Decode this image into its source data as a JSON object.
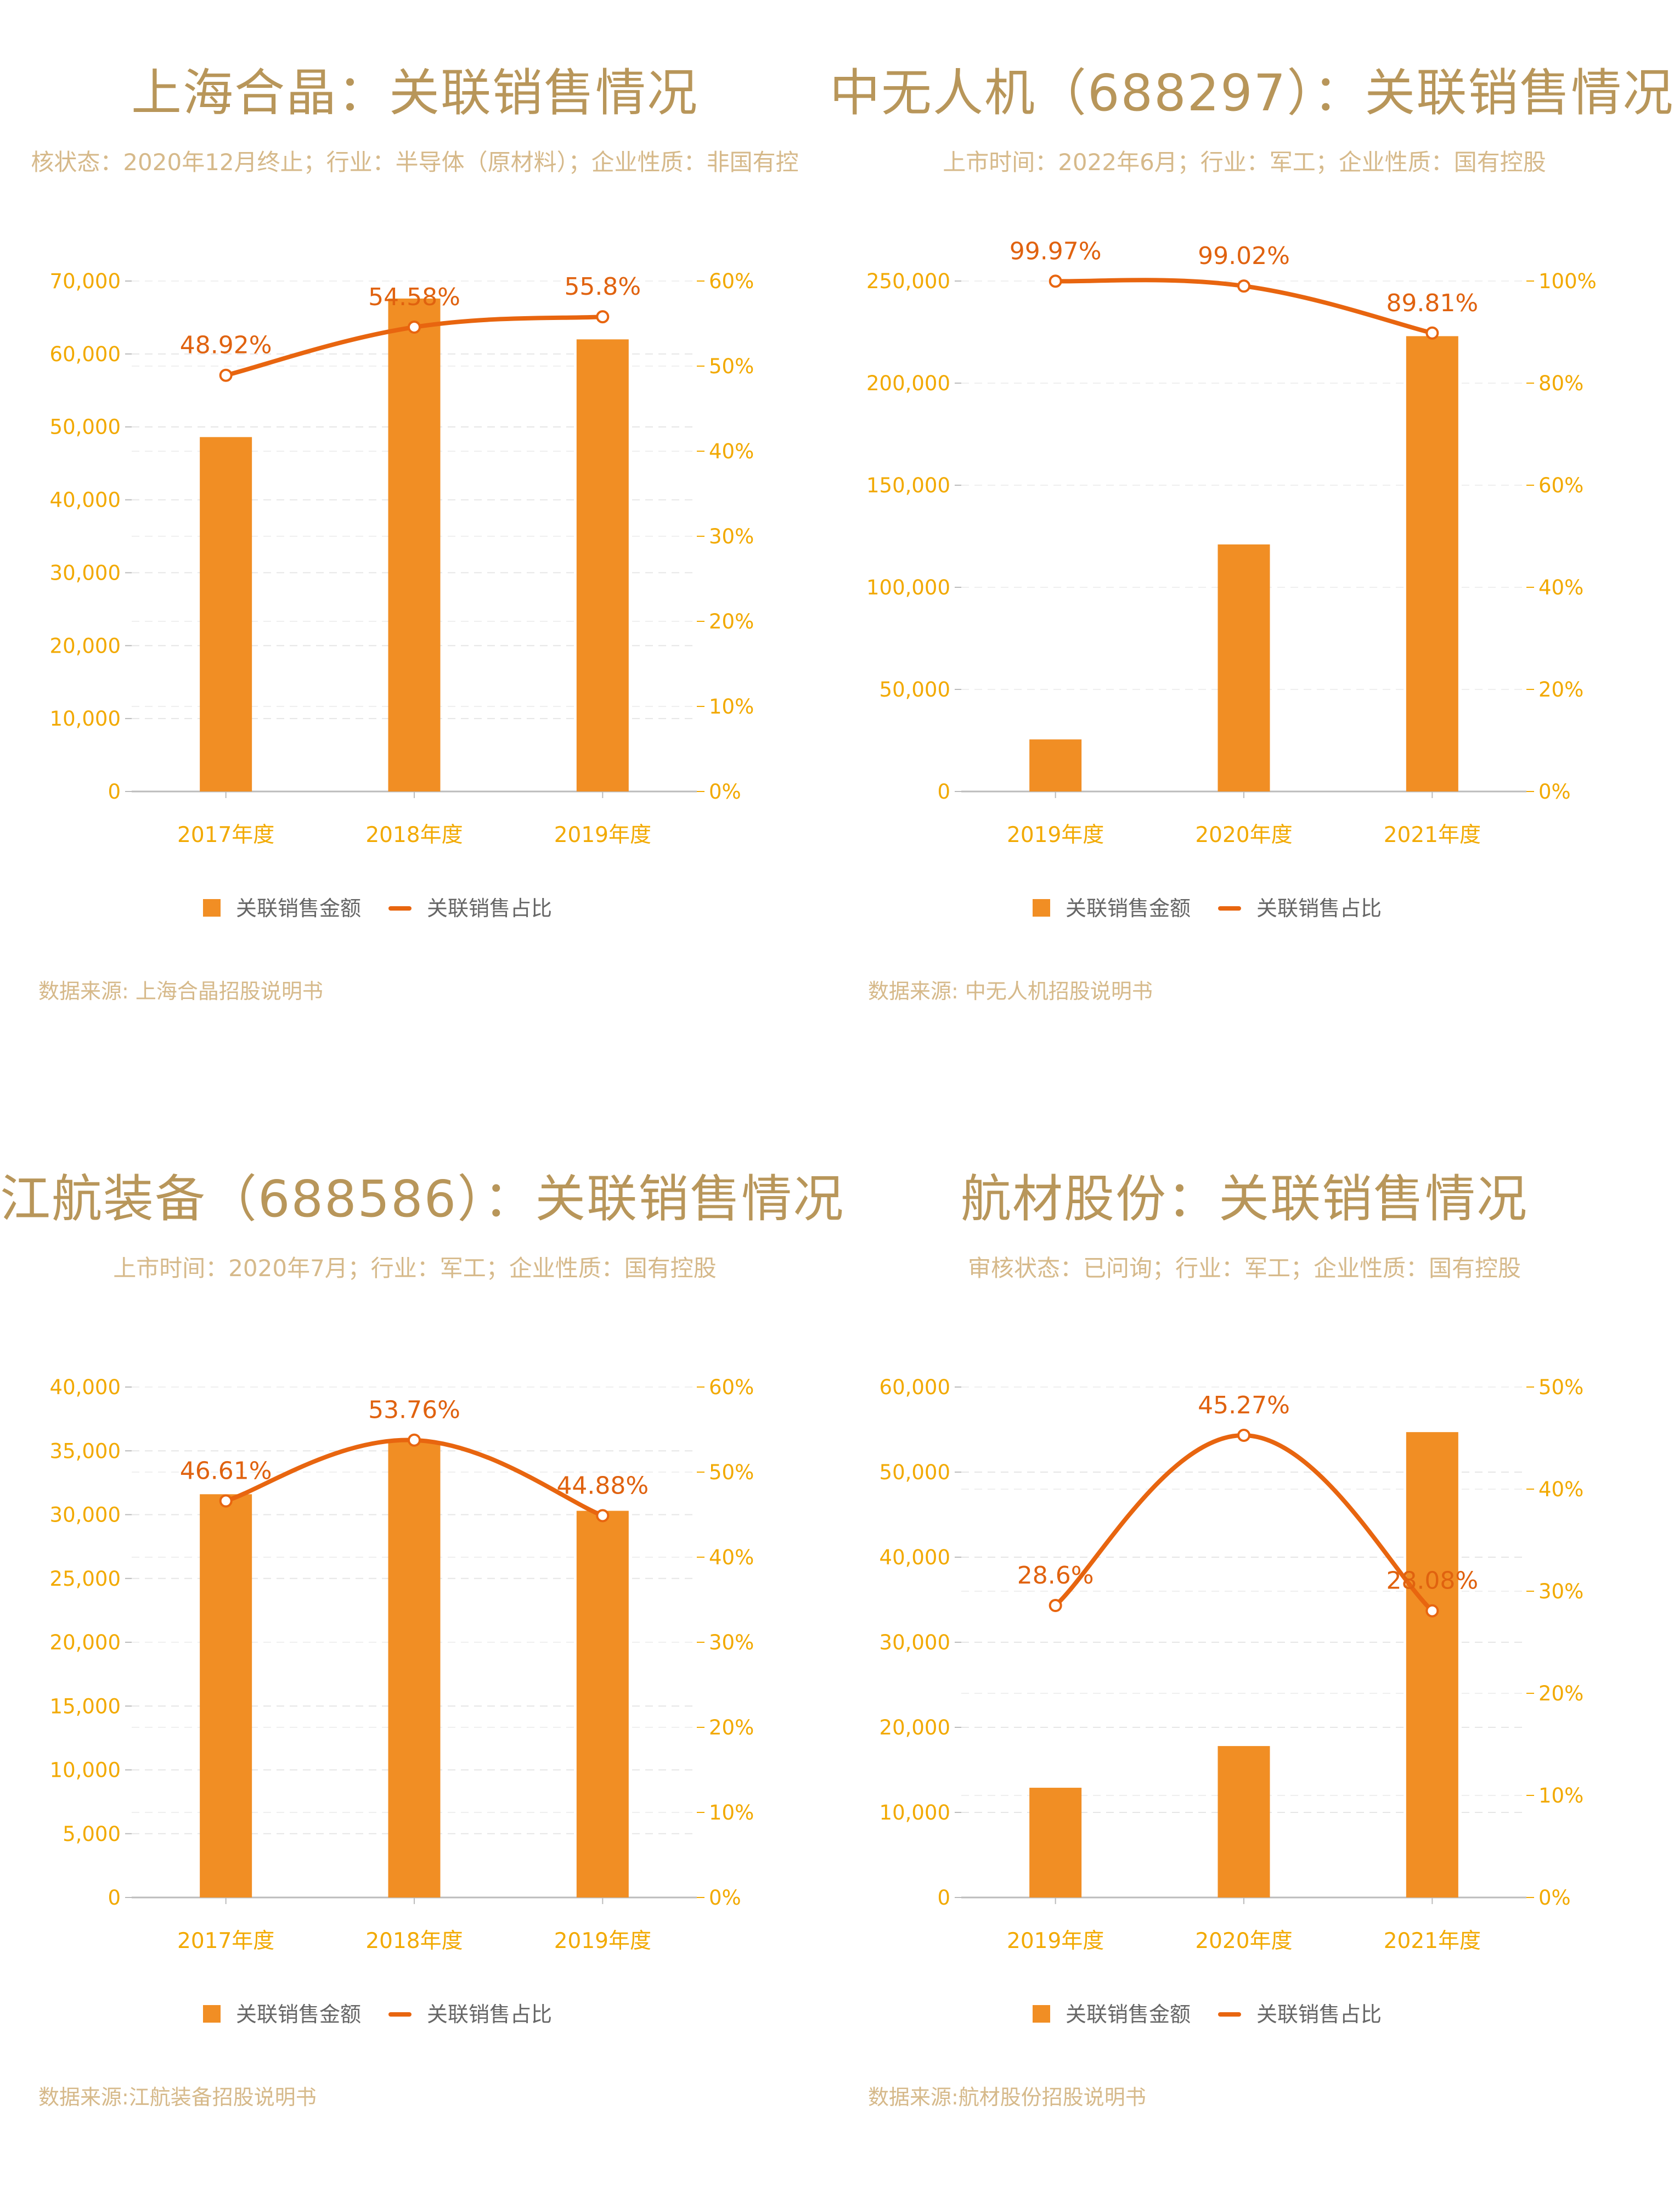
{
  "colors": {
    "title": "#b8965a",
    "subtitle": "#d6b98a",
    "axis_text": "#f2a900",
    "bar": "#f18e24",
    "line": "#e8650f",
    "label": "#e0620f",
    "legend_text": "#666666",
    "grid": "#e6e6e6"
  },
  "charts": [
    {
      "title": "上海合晶：关联销售情况",
      "subtitle": "核状态：2020年12月终止；行业：半导体（原材料）；企业性质：非国有控",
      "source": "数据来源: 上海合晶招股说明书",
      "legend": [
        "关联销售金额",
        "关联销售占比"
      ]
    },
    {
      "title": "中无人机（688297）：关联销售情况",
      "subtitle": "上市时间：2022年6月；行业：军工；企业性质：国有控股",
      "source": "数据来源: 中无人机招股说明书",
      "legend": [
        "关联销售金额",
        "关联销售占比"
      ]
    },
    {
      "title": "江航装备（688586）：关联销售情况",
      "subtitle": "上市时间：2020年7月；行业：军工；企业性质：国有控股",
      "source": "数据来源:江航装备招股说明书",
      "legend": [
        "关联销售金额",
        "关联销售占比"
      ]
    },
    {
      "title": "航材股份：关联销售情况",
      "subtitle": "审核状态：已问询；行业：军工；企业性质：国有控股",
      "source": "数据来源:航材股份招股说明书",
      "legend": [
        "关联销售金额",
        "关联销售占比"
      ]
    }
  ],
  "chart_data": [
    {
      "type": "bar",
      "categories": [
        "2017年度",
        "2018年度",
        "2019年度"
      ],
      "series": [
        {
          "name": "关联销售金额",
          "type": "bar",
          "axis": "left",
          "values": [
            48600,
            67600,
            62000
          ]
        },
        {
          "name": "关联销售占比",
          "type": "line",
          "axis": "right",
          "values": [
            48.92,
            54.58,
            55.8
          ],
          "labels": [
            "48.92%",
            "54.58%",
            "55.8%"
          ]
        }
      ],
      "ylim": [
        0,
        70000
      ],
      "yticks": [
        "0",
        "10,000",
        "20,000",
        "30,000",
        "40,000",
        "50,000",
        "60,000",
        "70,000"
      ],
      "y2lim": [
        0,
        60
      ],
      "y2ticks": [
        "0%",
        "10%",
        "20%",
        "30%",
        "40%",
        "50%",
        "60%"
      ],
      "legend_position": "bottom"
    },
    {
      "type": "bar",
      "categories": [
        "2019年度",
        "2020年度",
        "2021年度"
      ],
      "series": [
        {
          "name": "关联销售金额",
          "type": "bar",
          "axis": "left",
          "values": [
            25500,
            121000,
            223000
          ]
        },
        {
          "name": "关联销售占比",
          "type": "line",
          "axis": "right",
          "values": [
            99.97,
            99.02,
            89.81
          ],
          "labels": [
            "99.97%",
            "99.02%",
            "89.81%"
          ]
        }
      ],
      "ylim": [
        0,
        250000
      ],
      "yticks": [
        "0",
        "50,000",
        "100,000",
        "150,000",
        "200,000",
        "250,000"
      ],
      "y2lim": [
        0,
        100
      ],
      "y2ticks": [
        "0%",
        "20%",
        "40%",
        "60%",
        "80%",
        "100%"
      ],
      "legend_position": "bottom"
    },
    {
      "type": "bar",
      "categories": [
        "2017年度",
        "2018年度",
        "2019年度"
      ],
      "series": [
        {
          "name": "关联销售金额",
          "type": "bar",
          "axis": "left",
          "values": [
            31600,
            35700,
            30300
          ]
        },
        {
          "name": "关联销售占比",
          "type": "line",
          "axis": "right",
          "values": [
            46.61,
            53.76,
            44.88
          ],
          "labels": [
            "46.61%",
            "53.76%",
            "44.88%"
          ]
        }
      ],
      "ylim": [
        0,
        40000
      ],
      "yticks": [
        "0",
        "5,000",
        "10,000",
        "15,000",
        "20,000",
        "25,000",
        "30,000",
        "35,000",
        "40,000"
      ],
      "y2lim": [
        0,
        60
      ],
      "y2ticks": [
        "0%",
        "10%",
        "20%",
        "30%",
        "40%",
        "50%",
        "60%"
      ],
      "legend_position": "bottom"
    },
    {
      "type": "bar",
      "categories": [
        "2019年度",
        "2020年度",
        "2021年度"
      ],
      "series": [
        {
          "name": "关联销售金额",
          "type": "bar",
          "axis": "left",
          "values": [
            12900,
            17800,
            54700
          ]
        },
        {
          "name": "关联销售占比",
          "type": "line",
          "axis": "right",
          "values": [
            28.6,
            45.27,
            28.08
          ],
          "labels": [
            "28.6%",
            "45.27%",
            "28.08%"
          ]
        }
      ],
      "ylim": [
        0,
        60000
      ],
      "yticks": [
        "0",
        "10,000",
        "20,000",
        "30,000",
        "40,000",
        "50,000",
        "60,000"
      ],
      "y2lim": [
        0,
        50
      ],
      "y2ticks": [
        "0%",
        "10%",
        "20%",
        "30%",
        "40%",
        "50%"
      ],
      "legend_position": "bottom"
    }
  ]
}
